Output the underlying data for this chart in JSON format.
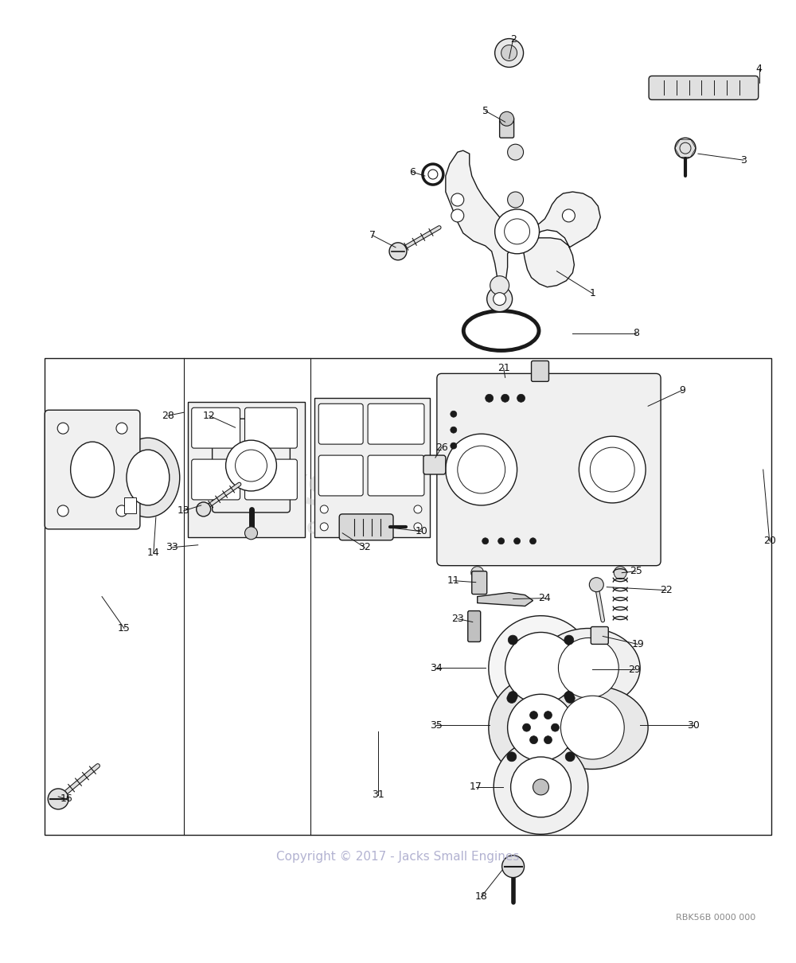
{
  "bg_color": "#ffffff",
  "fig_width": 10.0,
  "fig_height": 12.1,
  "copyright": "Copyright © 2017 - Jacks Small Engines",
  "part_number": "RBK56B 0000 000",
  "line_color": "#1a1a1a",
  "lw": 1.0
}
